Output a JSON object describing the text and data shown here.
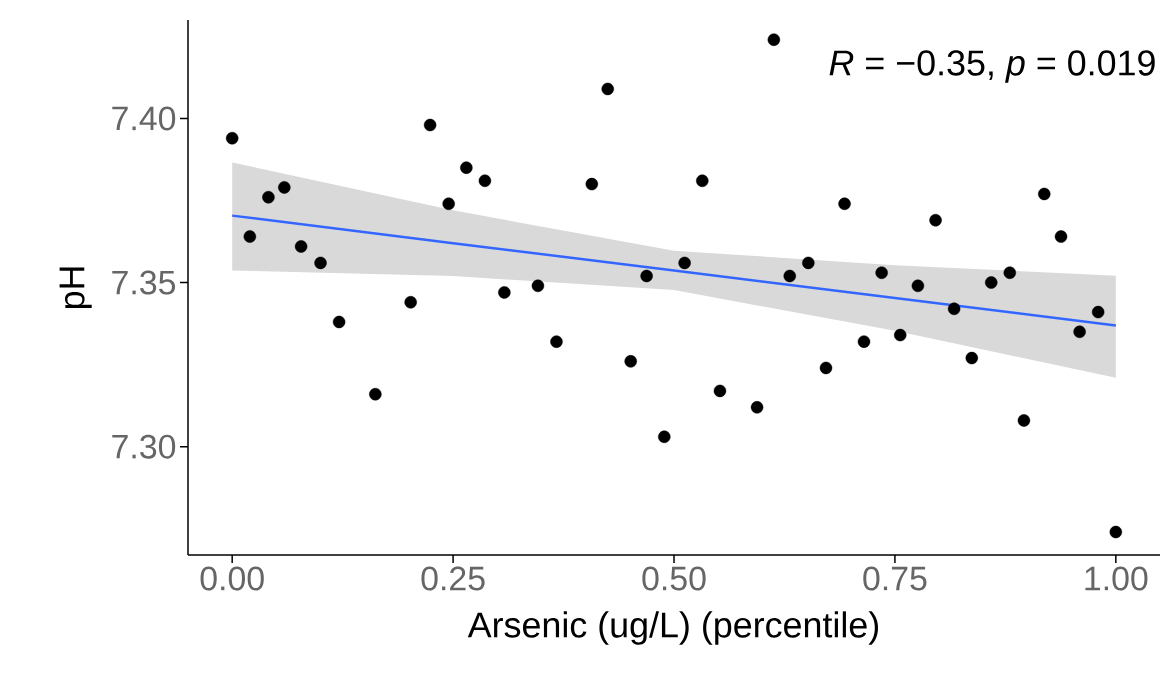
{
  "chart_data": {
    "type": "scatter",
    "xlabel": "Arsenic (ug/L) (percentile)",
    "ylabel": "pH",
    "annotations": [
      "*R* = −0.35, *p* = 0.019"
    ],
    "xlim": [
      -0.05,
      1.05
    ],
    "ylim": [
      7.267,
      7.43
    ],
    "xticks": [
      {
        "value": 0,
        "label": "0.00"
      },
      {
        "value": 0.25,
        "label": "0.25"
      },
      {
        "value": 0.5,
        "label": "0.50"
      },
      {
        "value": 0.75,
        "label": "0.75"
      },
      {
        "value": 1,
        "label": "1.00"
      }
    ],
    "yticks": [
      {
        "value": 7.3,
        "label": "7.30"
      },
      {
        "value": 7.35,
        "label": "7.35"
      },
      {
        "value": 7.4,
        "label": "7.40"
      }
    ],
    "marker": "circle",
    "line_style": "solid",
    "series": [
      {
        "type": "line",
        "marker": "none",
        "color": "#3366ff",
        "x": [
          0,
          0.25,
          0.5,
          0.75,
          1
        ],
        "values": [
          7.3704,
          7.362,
          7.3537,
          7.3453,
          7.3369
        ],
        "lower": [
          7.3537,
          7.352,
          7.3477,
          7.3353,
          7.321
        ],
        "upper": [
          7.3866,
          7.372,
          7.3597,
          7.3553,
          7.3521
        ]
      },
      {
        "color": "#000000",
        "x": [
          0,
          0.02,
          0.041,
          0.059,
          0.078,
          0.1,
          0.121,
          0.162,
          0.202,
          0.224,
          0.245,
          0.265,
          0.286,
          0.308,
          0.346,
          0.367,
          0.407,
          0.425,
          0.451,
          0.469,
          0.489,
          0.512,
          0.532,
          0.552,
          0.594,
          0.613,
          0.631,
          0.652,
          0.672,
          0.693,
          0.715,
          0.735,
          0.756,
          0.776,
          0.796,
          0.817,
          0.837,
          0.859,
          0.88,
          0.896,
          0.919,
          0.938,
          0.959,
          0.98,
          1.0
        ],
        "values": [
          7.394,
          7.364,
          7.376,
          7.379,
          7.361,
          7.356,
          7.338,
          7.316,
          7.344,
          7.398,
          7.374,
          7.385,
          7.381,
          7.347,
          7.349,
          7.332,
          7.38,
          7.409,
          7.326,
          7.352,
          7.303,
          7.356,
          7.381,
          7.317,
          7.312,
          7.424,
          7.352,
          7.356,
          7.324,
          7.374,
          7.332,
          7.353,
          7.334,
          7.349,
          7.369,
          7.342,
          7.327,
          7.35,
          7.353,
          7.308,
          7.377,
          7.364,
          7.335,
          7.341,
          7.274
        ]
      }
    ]
  }
}
